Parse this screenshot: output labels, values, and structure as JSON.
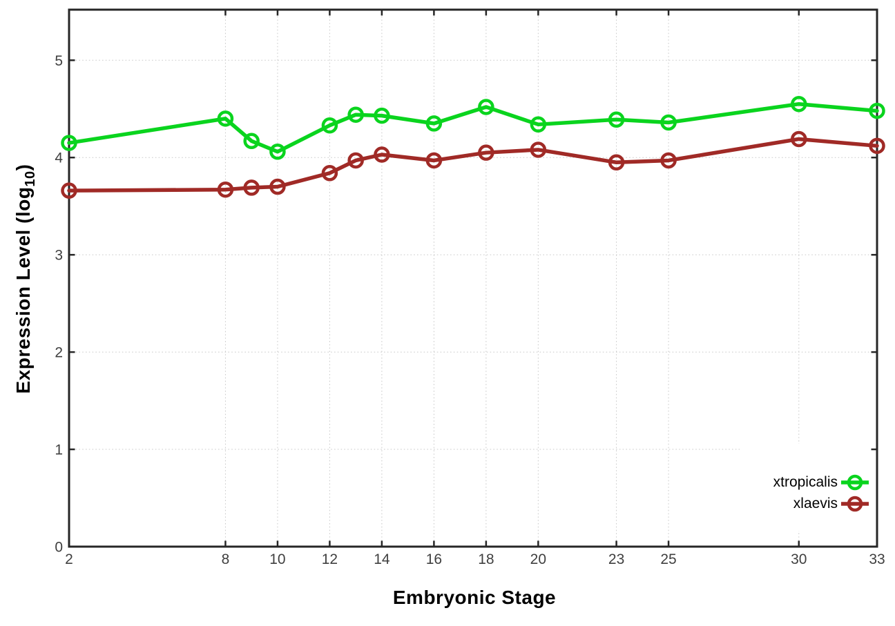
{
  "chart_data": {
    "type": "line",
    "title": "",
    "xlabel": "Embryonic Stage",
    "ylabel": "Expression Level (log10)",
    "ylabel_parts": {
      "main": "Expression Level (log",
      "sub": "10",
      "end": ")"
    },
    "x": [
      2,
      8,
      9,
      10,
      12,
      13,
      14,
      16,
      18,
      20,
      23,
      25,
      30,
      33
    ],
    "xticks": [
      2,
      8,
      10,
      12,
      14,
      16,
      18,
      20,
      23,
      25,
      30,
      33
    ],
    "yticks": [
      0,
      1,
      2,
      3,
      4,
      5
    ],
    "xlim": [
      2,
      33
    ],
    "ylim": [
      0,
      5.52
    ],
    "grid": true,
    "legend_position": "bottom-right",
    "series": [
      {
        "name": "xtropicalis",
        "color": "#0ad41e",
        "marker": "open-circle",
        "values": [
          4.15,
          4.4,
          4.17,
          4.06,
          4.33,
          4.44,
          4.43,
          4.35,
          4.52,
          4.34,
          4.39,
          4.36,
          4.55,
          4.48
        ]
      },
      {
        "name": "xlaevis",
        "color": "#a02a26",
        "marker": "open-circle",
        "values": [
          3.66,
          3.67,
          3.69,
          3.7,
          3.84,
          3.97,
          4.03,
          3.97,
          4.05,
          4.08,
          3.95,
          3.97,
          4.19,
          4.12
        ]
      }
    ],
    "colors": {
      "grid": "#c8c8c8",
      "axis": "#262626",
      "tick_label": "#3f3f3f",
      "legend_background": "#ffffff"
    }
  }
}
